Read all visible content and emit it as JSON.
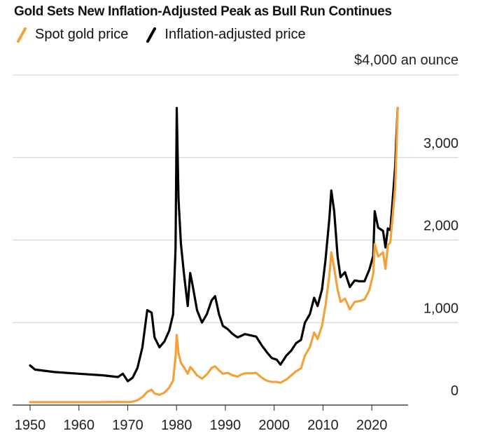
{
  "chart_data": {
    "type": "line",
    "title": "Gold Sets New Inflation-Adjusted Peak as Bull Run Continues",
    "xlabel": "",
    "ylabel": "",
    "unit_label": "$4,000 an ounce",
    "xlim": [
      1950,
      2025
    ],
    "ylim": [
      0,
      4000
    ],
    "x_ticks": [
      1950,
      1960,
      1970,
      1980,
      1990,
      2000,
      2010,
      2020
    ],
    "x_tick_labels": [
      "1950",
      "1960",
      "1970",
      "1980",
      "1990",
      "2000",
      "2010",
      "2020"
    ],
    "y_ticks": [
      0,
      1000,
      2000,
      3000
    ],
    "y_tick_labels": [
      "0",
      "1,000",
      "2,000",
      "3,000"
    ],
    "grid": true,
    "legend_position": "top-left",
    "series": [
      {
        "name": "Spot gold price",
        "color": "#f2a23a",
        "x": [
          1950,
          1955,
          1960,
          1965,
          1968,
          1970,
          1971,
          1972,
          1973,
          1974,
          1974.9,
          1975.5,
          1976.5,
          1977.5,
          1978.5,
          1979.3,
          1979.8,
          1980.05,
          1980.4,
          1980.9,
          1981.5,
          1982.3,
          1982.8,
          1983.3,
          1984.2,
          1985.2,
          1986.2,
          1987.2,
          1987.9,
          1988.7,
          1989.5,
          1990.5,
          1991.5,
          1992.5,
          1993.3,
          1994,
          1995.5,
          1996.3,
          1997.5,
          1998.5,
          1999.5,
          2000.5,
          2001.3,
          2002.5,
          2003.5,
          2004.5,
          2005.5,
          2006.3,
          2007.3,
          2008.2,
          2008.9,
          2009.8,
          2010.5,
          2011.3,
          2011.7,
          2012.3,
          2013,
          2013.6,
          2014.5,
          2015.5,
          2016.5,
          2017.5,
          2018.5,
          2019.5,
          2020.3,
          2020.6,
          2021.3,
          2022.3,
          2022.8,
          2023.3,
          2023.8,
          2024.3,
          2024.8,
          2025.0,
          2025.3
        ],
        "values": [
          35,
          35,
          35,
          35,
          39,
          36,
          41,
          58,
          97,
          160,
          186,
          140,
          125,
          150,
          210,
          300,
          580,
          850,
          630,
          510,
          460,
          380,
          460,
          430,
          360,
          320,
          370,
          450,
          470,
          420,
          380,
          390,
          360,
          345,
          370,
          385,
          385,
          390,
          330,
          295,
          280,
          280,
          270,
          310,
          360,
          410,
          445,
          600,
          700,
          880,
          800,
          960,
          1200,
          1570,
          1850,
          1660,
          1400,
          1250,
          1290,
          1160,
          1250,
          1260,
          1280,
          1390,
          1590,
          1950,
          1800,
          1850,
          1650,
          1940,
          1970,
          2300,
          2650,
          3000,
          3600
        ]
      },
      {
        "name": "Inflation-adjusted price",
        "color": "#000000",
        "x": [
          1950,
          1951,
          1955,
          1960,
          1965,
          1968,
          1969,
          1970,
          1971,
          1972,
          1973,
          1974,
          1974.9,
          1975.5,
          1976.5,
          1977.5,
          1978.5,
          1979.3,
          1979.8,
          1980.05,
          1980.4,
          1980.9,
          1981.5,
          1982.3,
          1982.8,
          1983.3,
          1984.2,
          1985.2,
          1986.2,
          1987.2,
          1987.9,
          1988.7,
          1989.5,
          1990.5,
          1991.5,
          1992.5,
          1993.3,
          1994,
          1995.5,
          1996.3,
          1997.5,
          1998.5,
          1999.5,
          2000.5,
          2001.3,
          2002.5,
          2003.5,
          2004.5,
          2005.5,
          2006.3,
          2007.3,
          2008.2,
          2008.9,
          2009.8,
          2010.5,
          2011.3,
          2011.7,
          2012.3,
          2013,
          2013.6,
          2014.5,
          2015.5,
          2016.5,
          2017.5,
          2018.5,
          2019.5,
          2020.3,
          2020.6,
          2021.3,
          2022.3,
          2022.8,
          2023.3,
          2023.8,
          2024.3,
          2024.8,
          2025.0,
          2025.3
        ],
        "values": [
          480,
          430,
          400,
          380,
          360,
          340,
          380,
          290,
          330,
          450,
          700,
          1150,
          1120,
          820,
          700,
          770,
          900,
          1100,
          1900,
          3600,
          2500,
          1950,
          1600,
          1200,
          1600,
          1450,
          1150,
          1000,
          1100,
          1270,
          1320,
          1100,
          960,
          920,
          860,
          820,
          840,
          860,
          840,
          830,
          720,
          640,
          570,
          550,
          490,
          600,
          660,
          750,
          790,
          1000,
          1100,
          1300,
          1200,
          1400,
          1750,
          2260,
          2600,
          2350,
          1800,
          1550,
          1610,
          1430,
          1510,
          1500,
          1500,
          1640,
          1810,
          2350,
          2150,
          2110,
          1910,
          2140,
          2120,
          2500,
          2900,
          3200,
          3600
        ]
      }
    ]
  }
}
